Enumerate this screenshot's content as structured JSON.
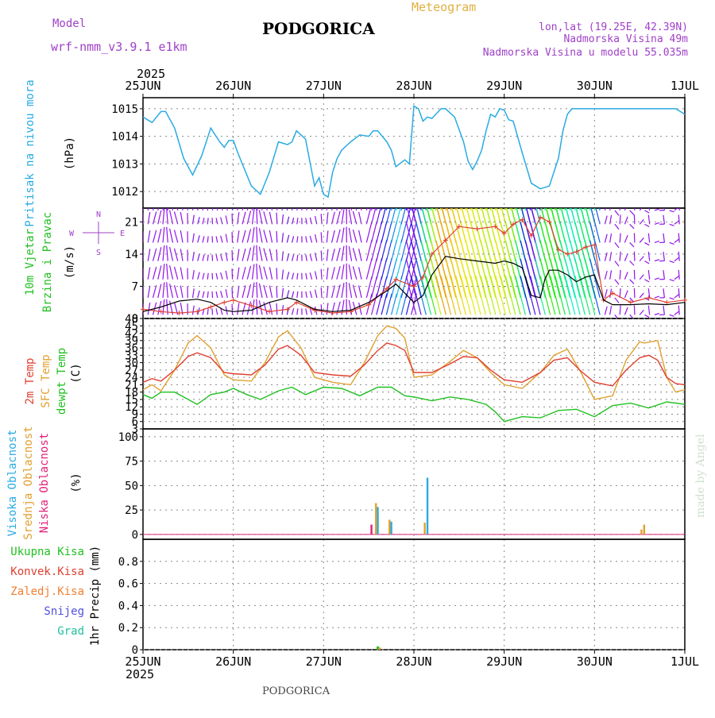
{
  "header": {
    "model_label": "Model",
    "model_name": "wrf-nmm_v3.9.1  e1km",
    "station": "PODGORICA",
    "meteogram_label": "Meteogram",
    "lonlat": "lon,lat (19.25E, 42.39N)",
    "elevation": "Nadmorska Visina 49m",
    "model_elevation": "Nadmorska Visina u modelu 55.035m",
    "year_top": "2025",
    "year_bottom": "2025",
    "footer_station": "PODGORICA",
    "credit": "made by Angel"
  },
  "colors": {
    "pressure": "#29abe2",
    "purple": "#a040c8",
    "gold": "#e0b040",
    "temp2m": "#e04030",
    "sfc": "#e0a030",
    "dewpt": "#20c020",
    "wind_speed": "#000000",
    "gust": "#e04030",
    "cloud_high": "#29abe2",
    "cloud_mid": "#e0a030",
    "cloud_low": "#e0207a",
    "grid": "#888888"
  },
  "chart_data": [
    {
      "type": "line",
      "panel": "pressure",
      "ylabel_colored": "Pritisak na nivou mora",
      "ylabel_units": "(hPa)",
      "x_ticks": [
        "25JUN",
        "26JUN",
        "27JUN",
        "28JUN",
        "29JUN",
        "30JUN",
        "1JUL"
      ],
      "ylim": [
        1011.4,
        1015.4
      ],
      "y_ticks": [
        1012,
        1013,
        1014,
        1015
      ],
      "series": [
        {
          "name": "pressure",
          "x": [
            0,
            0.1,
            0.2,
            0.25,
            0.35,
            0.45,
            0.55,
            0.65,
            0.75,
            0.85,
            0.9,
            0.95,
            1.0,
            1.05,
            1.1,
            1.2,
            1.3,
            1.4,
            1.5,
            1.6,
            1.65,
            1.7,
            1.8,
            1.9,
            1.95,
            2.0,
            2.05,
            2.1,
            2.15,
            2.2,
            2.3,
            2.4,
            2.5,
            2.55,
            2.6,
            2.7,
            2.75,
            2.8,
            2.9,
            2.95,
            3.0,
            3.05,
            3.1,
            3.15,
            3.2,
            3.3,
            3.35,
            3.45,
            3.55,
            3.6,
            3.65,
            3.7,
            3.75,
            3.8,
            3.85,
            3.9,
            3.95,
            4.0,
            4.05,
            4.1,
            4.2,
            4.3,
            4.4,
            4.5,
            4.6,
            4.65,
            4.7,
            4.75,
            4.8,
            4.85,
            4.9,
            4.95,
            5.0,
            5.1,
            5.15,
            5.2,
            5.3,
            5.35,
            5.4,
            5.45,
            5.5,
            5.6,
            5.65,
            5.75,
            5.85,
            5.9,
            6.0
          ],
          "values": [
            1014.7,
            1014.5,
            1014.9,
            1014.9,
            1014.3,
            1013.2,
            1012.6,
            1013.3,
            1014.3,
            1013.8,
            1013.6,
            1013.85,
            1013.85,
            1013.4,
            1013.0,
            1012.2,
            1011.9,
            1012.7,
            1013.8,
            1013.7,
            1013.8,
            1014.2,
            1013.9,
            1012.2,
            1012.5,
            1011.9,
            1011.8,
            1012.7,
            1013.2,
            1013.5,
            1013.8,
            1014.05,
            1014.0,
            1014.2,
            1014.2,
            1013.8,
            1013.5,
            1012.9,
            1013.15,
            1013.0,
            1015.1,
            1015.0,
            1014.55,
            1014.7,
            1014.65,
            1015.0,
            1015.0,
            1014.7,
            1013.8,
            1013.1,
            1012.8,
            1013.1,
            1013.5,
            1014.2,
            1014.8,
            1014.7,
            1015.0,
            1014.95,
            1014.6,
            1014.55,
            1013.4,
            1012.3,
            1012.1,
            1012.2,
            1013.2,
            1014.2,
            1014.8,
            1015.0,
            1015.0,
            1015.0,
            1015.0,
            1015.0,
            1015.0,
            1015.0,
            1015.0,
            1015.0,
            1015.0,
            1015.0,
            1015.0,
            1015.0,
            1015.0,
            1015.0,
            1015.0,
            1015.0,
            1015.0,
            1015.0,
            1014.8
          ]
        }
      ]
    },
    {
      "type": "line",
      "panel": "wind",
      "ylabel_colored_1": "10m Vjetar",
      "ylabel_colored_2": "Brzina i Pravac",
      "ylabel_units": "(m/s)",
      "compass": [
        "N",
        "E",
        "S",
        "W"
      ],
      "ylim": [
        0,
        24
      ],
      "y_ticks": [
        0,
        7,
        14,
        21
      ],
      "series": [
        {
          "name": "speed",
          "x": [
            0,
            0.2,
            0.4,
            0.6,
            0.75,
            0.9,
            1.0,
            1.2,
            1.4,
            1.6,
            1.7,
            1.9,
            2.1,
            2.3,
            2.5,
            2.7,
            2.8,
            3.0,
            3.1,
            3.2,
            3.35,
            3.5,
            3.7,
            3.9,
            4.0,
            4.1,
            4.2,
            4.3,
            4.4,
            4.45,
            4.5,
            4.6,
            4.7,
            4.8,
            4.9,
            5.0,
            5.1,
            5.2,
            5.4,
            5.6,
            5.8,
            6.0
          ],
          "values": [
            1.5,
            2.5,
            3.8,
            4.2,
            3.5,
            1.8,
            1.5,
            1.8,
            3.5,
            4.5,
            4.0,
            2.0,
            1.5,
            1.8,
            3.5,
            6.0,
            7.5,
            3.5,
            5.0,
            9.5,
            13.5,
            13.0,
            12.5,
            12.0,
            12.5,
            12.0,
            11.0,
            5.0,
            4.5,
            8.5,
            10.5,
            10.5,
            9.5,
            8.0,
            9.0,
            9.5,
            4.0,
            3.0,
            3.0,
            3.2,
            3.0,
            3.5
          ]
        },
        {
          "name": "gust",
          "x": [
            0,
            0.2,
            0.4,
            0.6,
            0.75,
            0.9,
            1.0,
            1.2,
            1.4,
            1.6,
            1.7,
            1.9,
            2.1,
            2.3,
            2.5,
            2.7,
            2.8,
            3.0,
            3.1,
            3.2,
            3.35,
            3.5,
            3.7,
            3.9,
            4.0,
            4.1,
            4.2,
            4.3,
            4.4,
            4.5,
            4.6,
            4.7,
            4.8,
            4.9,
            5.0,
            5.1,
            5.2,
            5.4,
            5.6,
            5.8,
            6.0
          ],
          "values": [
            2.0,
            1.5,
            1.2,
            1.5,
            2.5,
            3.5,
            4.0,
            2.8,
            1.5,
            2.0,
            3.5,
            1.8,
            1.2,
            1.5,
            3.0,
            6.5,
            8.5,
            7.0,
            9.0,
            14.0,
            17.0,
            20.0,
            19.5,
            20.0,
            18.5,
            20.5,
            21.5,
            18.0,
            22.0,
            21.0,
            15.0,
            14.0,
            14.5,
            15.5,
            16.0,
            4.0,
            5.5,
            3.5,
            4.5,
            3.5,
            4.0
          ]
        }
      ]
    },
    {
      "type": "line",
      "panel": "temperature",
      "ylabel_colored_1": "2m Temp",
      "ylabel_colored_2": "SFC Temp",
      "ylabel_colored_3": "dewpt Temp",
      "ylabel_units": "(C)",
      "ylim": [
        3,
        48
      ],
      "y_ticks": [
        3,
        6,
        9,
        12,
        15,
        18,
        21,
        24,
        27,
        30,
        33,
        36,
        39,
        42,
        45,
        48
      ],
      "series": [
        {
          "name": "2m Temp",
          "x": [
            0,
            0.1,
            0.2,
            0.35,
            0.5,
            0.6,
            0.75,
            0.9,
            1.0,
            1.2,
            1.35,
            1.5,
            1.6,
            1.75,
            1.9,
            2.1,
            2.3,
            2.45,
            2.6,
            2.7,
            2.8,
            2.9,
            3.0,
            3.2,
            3.4,
            3.55,
            3.7,
            3.85,
            4.0,
            4.2,
            4.4,
            4.55,
            4.7,
            4.85,
            5.0,
            5.2,
            5.35,
            5.5,
            5.6,
            5.7,
            5.8,
            5.9,
            6.0
          ],
          "values": [
            22,
            23.5,
            22.5,
            27,
            32.5,
            34,
            32,
            26,
            25.5,
            25,
            29,
            35.5,
            37,
            33,
            26,
            25,
            24.5,
            29,
            35,
            38,
            37,
            35,
            26,
            26,
            29.5,
            32.5,
            32,
            27,
            23,
            22,
            26,
            31,
            32,
            26.5,
            22,
            20.5,
            27,
            32,
            33,
            31,
            24,
            21.5,
            21
          ]
        },
        {
          "name": "SFC Temp",
          "x": [
            0,
            0.1,
            0.2,
            0.35,
            0.5,
            0.6,
            0.75,
            0.9,
            1.0,
            1.2,
            1.35,
            1.5,
            1.6,
            1.75,
            1.9,
            2.1,
            2.3,
            2.45,
            2.6,
            2.7,
            2.8,
            2.9,
            3.0,
            3.2,
            3.4,
            3.55,
            3.7,
            3.85,
            4.0,
            4.2,
            4.4,
            4.55,
            4.7,
            4.85,
            5.0,
            5.2,
            5.35,
            5.5,
            5.55,
            5.7,
            5.8,
            5.9,
            6.0
          ],
          "values": [
            19,
            21,
            18.5,
            27,
            38,
            41,
            36,
            25,
            23,
            22.5,
            30,
            40.5,
            43,
            36,
            24,
            22,
            21,
            30,
            41,
            45,
            44,
            40,
            24,
            25,
            30.5,
            35,
            32,
            26,
            21,
            19.5,
            26,
            33,
            35.5,
            26,
            15,
            16.5,
            31,
            38.5,
            38,
            39,
            24,
            18,
            19
          ]
        },
        {
          "name": "dewpt Temp",
          "x": [
            0,
            0.1,
            0.2,
            0.35,
            0.5,
            0.6,
            0.75,
            0.9,
            1.0,
            1.15,
            1.3,
            1.5,
            1.65,
            1.8,
            2.0,
            2.2,
            2.4,
            2.6,
            2.75,
            2.9,
            3.0,
            3.2,
            3.4,
            3.6,
            3.8,
            3.9,
            4.0,
            4.2,
            4.4,
            4.6,
            4.8,
            5.0,
            5.2,
            5.4,
            5.6,
            5.8,
            6.0
          ],
          "values": [
            17,
            15.5,
            18,
            18,
            15,
            13,
            17,
            18,
            19.5,
            17,
            15,
            18.5,
            20,
            17,
            20,
            19.5,
            16.5,
            20,
            20,
            16.5,
            16,
            14.5,
            16,
            15,
            13,
            10,
            6,
            8,
            7.5,
            10.5,
            11,
            8,
            12.5,
            13.5,
            11.5,
            14,
            13
          ]
        }
      ]
    },
    {
      "type": "bar",
      "panel": "clouds",
      "ylabel_colored_1": "Visoka Oblacnost",
      "ylabel_colored_2": "Srednja Oblacnost",
      "ylabel_colored_3": "Niska Oblacnost",
      "ylabel_units": "(%)",
      "ylim": [
        -5,
        108
      ],
      "y_ticks": [
        0,
        25,
        50,
        75,
        100
      ],
      "series": [
        {
          "name": "Visoka Oblacnost",
          "x": [
            2.6,
            2.75,
            3.15
          ],
          "values": [
            28,
            13,
            58
          ]
        },
        {
          "name": "Srednja Oblacnost",
          "x": [
            2.58,
            2.73,
            3.12,
            5.52,
            5.55
          ],
          "values": [
            32,
            15,
            12,
            5,
            10
          ]
        },
        {
          "name": "Niska Oblacnost",
          "x": [
            2.53
          ],
          "values": [
            10
          ]
        }
      ]
    },
    {
      "type": "bar",
      "panel": "precip",
      "ylabel_colored_1": "Ukupna  Kisa",
      "ylabel_colored_2": "Konvek.Kisa",
      "ylabel_colored_3": "Zaledj.Kisa",
      "ylabel_colored_4": "Snijeg",
      "ylabel_colored_5": "Grad",
      "ylabel_units": "1hr Precip (mm)",
      "ylim": [
        0,
        1.0
      ],
      "y_ticks": [
        0,
        0.2,
        0.4,
        0.6,
        0.8
      ],
      "y_tick_labels": [
        "0",
        "0.2",
        "0.4",
        "0.6",
        "0.8"
      ],
      "series": [
        {
          "name": "Ukupna  Kisa",
          "x": [
            2.6
          ],
          "values": [
            0.03
          ]
        },
        {
          "name": "Zaledj.Kisa",
          "x": [
            2.62
          ],
          "values": [
            0.02
          ]
        }
      ]
    }
  ]
}
